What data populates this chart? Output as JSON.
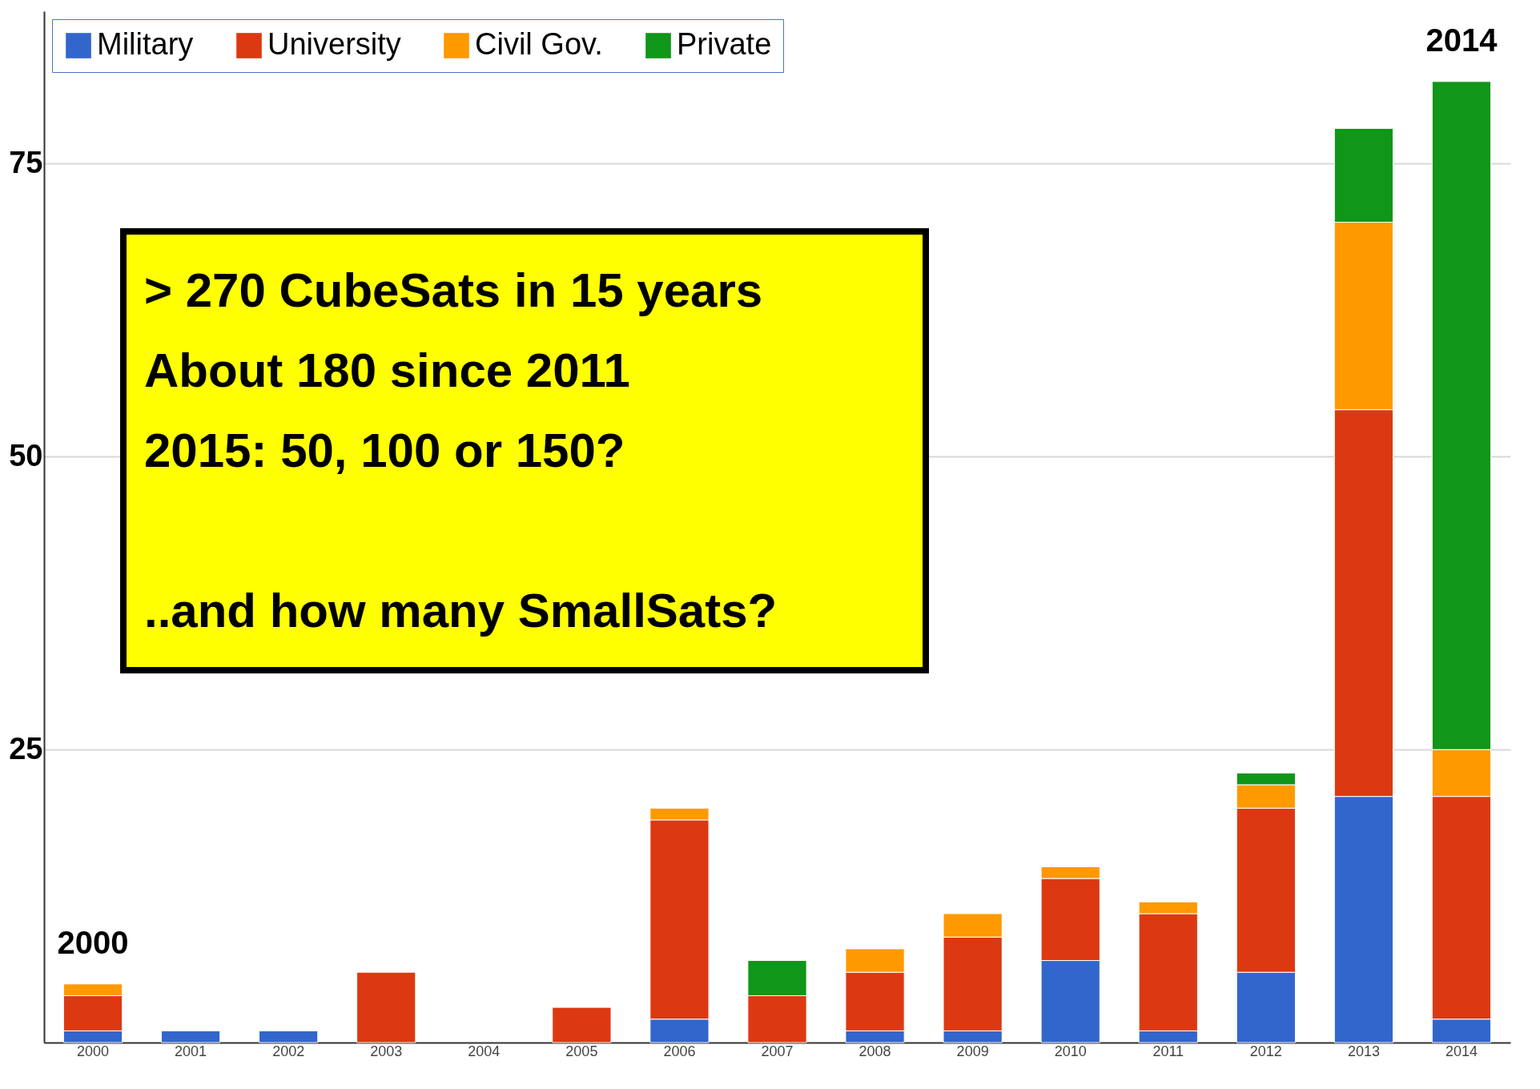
{
  "chart_data": {
    "type": "bar",
    "stacked": true,
    "categories": [
      "2000",
      "2001",
      "2002",
      "2003",
      "2004",
      "2005",
      "2006",
      "2007",
      "2008",
      "2009",
      "2010",
      "2011",
      "2012",
      "2013",
      "2014"
    ],
    "series": [
      {
        "name": "Military",
        "color": "#3366cc",
        "values": [
          1,
          1,
          1,
          0,
          0,
          0,
          2,
          0,
          1,
          1,
          7,
          1,
          6,
          21,
          2
        ]
      },
      {
        "name": "University",
        "color": "#dc3912",
        "values": [
          3,
          0,
          0,
          6,
          0,
          3,
          17,
          4,
          5,
          8,
          7,
          10,
          14,
          33,
          19
        ]
      },
      {
        "name": "Civil Gov.",
        "color": "#ff9900",
        "values": [
          1,
          0,
          0,
          0,
          0,
          0,
          1,
          0,
          2,
          2,
          1,
          1,
          2,
          16,
          4
        ]
      },
      {
        "name": "Private",
        "color": "#109618",
        "values": [
          0,
          0,
          0,
          0,
          0,
          0,
          0,
          3,
          0,
          0,
          0,
          0,
          1,
          8,
          57
        ]
      }
    ],
    "ylim": [
      0,
      88
    ],
    "yticks": [
      25,
      50,
      75
    ],
    "grid": "y",
    "legend": "top left",
    "annotations": [
      {
        "text": "2000",
        "x": "2000",
        "y": 5
      },
      {
        "text": "2014",
        "x": "2014",
        "y": 82
      },
      "> 270 CubeSats in 15 years",
      "About 180 since 2011",
      "2015: 50, 100 or 150?",
      "..and how many SmallSats?"
    ]
  }
}
